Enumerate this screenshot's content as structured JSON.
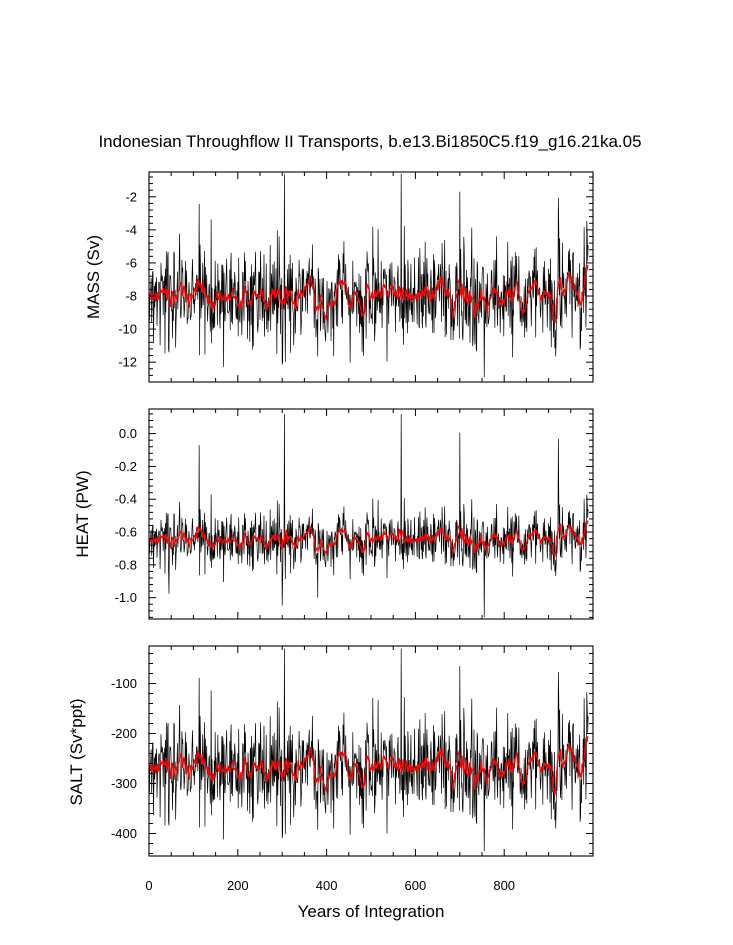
{
  "chart_data": {
    "type": "line",
    "title": "Indonesian Throughflow II Transports, b.e13.Bi1850C5.f19_g16.21ka.05",
    "xlabel": "Years of Integration",
    "xlim": [
      0,
      1000
    ],
    "xticks": [
      0,
      200,
      400,
      600,
      800
    ],
    "series_colors": {
      "annual": "#000000",
      "smoothed": "#ff0000"
    },
    "panels": [
      {
        "name": "mass",
        "ylabel": "MASS (Sv)",
        "ylim": [
          -13.2,
          -0.5
        ],
        "yticks": [
          "-2",
          "-4",
          "-6",
          "-8",
          "-10",
          "-12"
        ],
        "ytick_values": [
          -2,
          -4,
          -6,
          -8,
          -10,
          -12
        ],
        "mean": -7.9,
        "spread": 1.5,
        "peak": -0.6,
        "trough": -12.9,
        "smooth_amp": 0.45
      },
      {
        "name": "heat",
        "ylabel": "HEAT (PW)",
        "ylim": [
          -1.13,
          0.15
        ],
        "yticks": [
          "0.0",
          "-0.2",
          "-0.4",
          "-0.6",
          "-0.8",
          "-1.0"
        ],
        "ytick_values": [
          0.0,
          -0.2,
          -0.4,
          -0.6,
          -0.8,
          -1.0
        ],
        "mean": -0.64,
        "spread": 0.09,
        "peak": 0.12,
        "trough": -1.12,
        "smooth_amp": 0.03
      },
      {
        "name": "salt",
        "ylabel": "SALT (Sv*ppt)",
        "ylim": [
          -445,
          -25
        ],
        "yticks": [
          "-100",
          "-200",
          "-300",
          "-400"
        ],
        "ytick_values": [
          -100,
          -200,
          -300,
          -400
        ],
        "mean": -265,
        "spread": 50,
        "peak": -30,
        "trough": -435,
        "smooth_amp": 15
      }
    ]
  }
}
